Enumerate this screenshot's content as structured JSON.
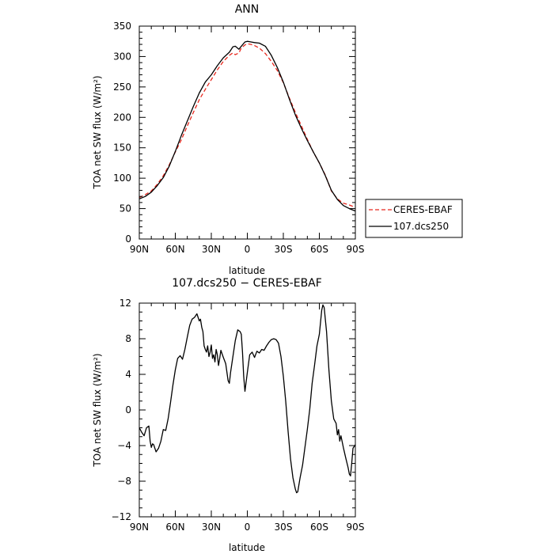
{
  "chart_data": [
    {
      "type": "line",
      "title": "ANN",
      "xlabel": "latitude",
      "ylabel": "TOA net SW flux (W/m²)",
      "ylim": [
        0,
        350
      ],
      "yticks": [
        0,
        50,
        100,
        150,
        200,
        250,
        300,
        350
      ],
      "xlim": [
        90,
        -90
      ],
      "xticks": [
        90,
        60,
        30,
        0,
        -30,
        -60,
        -90
      ],
      "xtick_labels": [
        "90N",
        "60N",
        "30N",
        "0",
        "30S",
        "60S",
        "90S"
      ],
      "legend_position": "outside-right",
      "series": [
        {
          "name": "CERES-EBAF",
          "color": "#e8281e",
          "dash": "dashed",
          "points": [
            [
              90,
              68
            ],
            [
              85,
              73
            ],
            [
              80,
              79
            ],
            [
              75,
              90
            ],
            [
              70,
              104
            ],
            [
              65,
              122
            ],
            [
              60,
              143
            ],
            [
              55,
              163
            ],
            [
              50,
              186
            ],
            [
              45,
              208
            ],
            [
              40,
              229
            ],
            [
              35,
              246
            ],
            [
              30,
              262
            ],
            [
              25,
              278
            ],
            [
              20,
              292
            ],
            [
              15,
              302
            ],
            [
              12,
              306
            ],
            [
              10,
              303
            ],
            [
              7,
              306
            ],
            [
              5,
              314
            ],
            [
              2,
              319
            ],
            [
              0,
              321
            ],
            [
              -3,
              320
            ],
            [
              -6,
              318
            ],
            [
              -10,
              314
            ],
            [
              -15,
              305
            ],
            [
              -20,
              292
            ],
            [
              -25,
              277
            ],
            [
              -30,
              257
            ],
            [
              -35,
              232
            ],
            [
              -40,
              208
            ],
            [
              -45,
              186
            ],
            [
              -50,
              164
            ],
            [
              -55,
              143
            ],
            [
              -60,
              125
            ],
            [
              -65,
              105
            ],
            [
              -70,
              79
            ],
            [
              -75,
              66
            ],
            [
              -80,
              59
            ],
            [
              -85,
              56
            ],
            [
              -90,
              52
            ]
          ]
        },
        {
          "name": "107.dcs250",
          "color": "#000000",
          "dash": "solid",
          "points": [
            [
              90,
              66
            ],
            [
              85,
              70
            ],
            [
              80,
              77
            ],
            [
              75,
              88
            ],
            [
              70,
              101
            ],
            [
              65,
              120
            ],
            [
              60,
              144
            ],
            [
              55,
              170
            ],
            [
              50,
              194
            ],
            [
              45,
              218
            ],
            [
              40,
              240
            ],
            [
              35,
              258
            ],
            [
              30,
              270
            ],
            [
              25,
              285
            ],
            [
              20,
              298
            ],
            [
              15,
              307
            ],
            [
              12,
              316
            ],
            [
              10,
              317
            ],
            [
              7,
              312
            ],
            [
              5,
              317
            ],
            [
              2,
              324
            ],
            [
              0,
              325
            ],
            [
              -3,
              324
            ],
            [
              -6,
              323
            ],
            [
              -10,
              322
            ],
            [
              -15,
              317
            ],
            [
              -20,
              302
            ],
            [
              -25,
              282
            ],
            [
              -30,
              258
            ],
            [
              -35,
              230
            ],
            [
              -40,
              204
            ],
            [
              -45,
              182
            ],
            [
              -50,
              162
            ],
            [
              -55,
              143
            ],
            [
              -60,
              125
            ],
            [
              -65,
              104
            ],
            [
              -70,
              80
            ],
            [
              -75,
              65
            ],
            [
              -80,
              55
            ],
            [
              -85,
              50
            ],
            [
              -90,
              46
            ]
          ]
        }
      ]
    },
    {
      "type": "line",
      "title": "107.dcs250 − CERES-EBAF",
      "xlabel": "latitude",
      "ylabel": "TOA net SW flux (W/m²)",
      "ylim": [
        -12,
        12
      ],
      "yticks": [
        -12,
        -8,
        -4,
        0,
        4,
        8,
        12
      ],
      "xlim": [
        90,
        -90
      ],
      "xticks": [
        90,
        60,
        30,
        0,
        -30,
        -60,
        -90
      ],
      "xtick_labels": [
        "90N",
        "60N",
        "30N",
        "0",
        "30S",
        "60S",
        "90S"
      ],
      "series": [
        {
          "color": "#000000",
          "dash": "solid",
          "points": [
            [
              90,
              -2
            ],
            [
              88,
              -2.5
            ],
            [
              86,
              -2.9
            ],
            [
              84,
              -2
            ],
            [
              82,
              -1.8
            ],
            [
              81,
              -3.5
            ],
            [
              80,
              -4.2
            ],
            [
              79,
              -3.8
            ],
            [
              78,
              -3.9
            ],
            [
              76,
              -4.7
            ],
            [
              74,
              -4.3
            ],
            [
              72,
              -3.5
            ],
            [
              70,
              -2.2
            ],
            [
              68,
              -2.3
            ],
            [
              66,
              -1.0
            ],
            [
              64,
              0.8
            ],
            [
              62,
              2.8
            ],
            [
              60,
              4.5
            ],
            [
              58,
              5.8
            ],
            [
              56,
              6.1
            ],
            [
              54,
              5.7
            ],
            [
              52,
              6.8
            ],
            [
              50,
              8.2
            ],
            [
              48,
              9.5
            ],
            [
              46,
              10.2
            ],
            [
              44,
              10.4
            ],
            [
              42,
              10.8
            ],
            [
              40,
              10.0
            ],
            [
              39,
              10.2
            ],
            [
              38,
              9.3
            ],
            [
              37,
              8.8
            ],
            [
              36,
              7.2
            ],
            [
              35,
              6.8
            ],
            [
              34,
              6.5
            ],
            [
              33,
              7.2
            ],
            [
              32,
              6.0
            ],
            [
              31,
              6.5
            ],
            [
              30,
              7.3
            ],
            [
              29,
              5.8
            ],
            [
              28,
              6.2
            ],
            [
              27,
              5.4
            ],
            [
              26,
              6.8
            ],
            [
              25,
              6.2
            ],
            [
              24,
              5.0
            ],
            [
              23,
              5.8
            ],
            [
              22,
              6.7
            ],
            [
              21,
              6.3
            ],
            [
              20,
              5.9
            ],
            [
              18,
              5.2
            ],
            [
              16,
              3.3
            ],
            [
              15,
              3.0
            ],
            [
              14,
              4.2
            ],
            [
              12,
              6.0
            ],
            [
              10,
              7.8
            ],
            [
              8,
              9.0
            ],
            [
              6,
              8.8
            ],
            [
              5,
              8.5
            ],
            [
              4,
              6.5
            ],
            [
              3,
              3.8
            ],
            [
              2,
              2.1
            ],
            [
              0,
              4.2
            ],
            [
              -2,
              6.2
            ],
            [
              -4,
              6.5
            ],
            [
              -6,
              5.9
            ],
            [
              -8,
              6.6
            ],
            [
              -10,
              6.4
            ],
            [
              -12,
              6.8
            ],
            [
              -14,
              6.7
            ],
            [
              -16,
              7.2
            ],
            [
              -18,
              7.6
            ],
            [
              -20,
              7.9
            ],
            [
              -22,
              8.0
            ],
            [
              -24,
              7.9
            ],
            [
              -26,
              7.5
            ],
            [
              -28,
              6.0
            ],
            [
              -30,
              3.8
            ],
            [
              -32,
              1.0
            ],
            [
              -34,
              -2.5
            ],
            [
              -36,
              -5.5
            ],
            [
              -38,
              -7.6
            ],
            [
              -40,
              -8.9
            ],
            [
              -41,
              -9.3
            ],
            [
              -42,
              -9.2
            ],
            [
              -44,
              -7.6
            ],
            [
              -46,
              -6.2
            ],
            [
              -48,
              -4.2
            ],
            [
              -50,
              -2.2
            ],
            [
              -52,
              0.1
            ],
            [
              -54,
              3.0
            ],
            [
              -56,
              5.0
            ],
            [
              -58,
              7.2
            ],
            [
              -60,
              8.5
            ],
            [
              -62,
              11.2
            ],
            [
              -63,
              11.8
            ],
            [
              -64,
              11.5
            ],
            [
              -66,
              8.8
            ],
            [
              -68,
              4.5
            ],
            [
              -70,
              1.0
            ],
            [
              -72,
              -1.0
            ],
            [
              -74,
              -1.5
            ],
            [
              -75,
              -2.8
            ],
            [
              -76,
              -2.2
            ],
            [
              -77,
              -3.5
            ],
            [
              -78,
              -2.9
            ],
            [
              -80,
              -4.2
            ],
            [
              -82,
              -5.4
            ],
            [
              -84,
              -6.5
            ],
            [
              -85,
              -7.2
            ],
            [
              -86,
              -7.4
            ],
            [
              -87,
              -6.0
            ],
            [
              -88,
              -4.3
            ],
            [
              -90,
              -3.9
            ]
          ]
        }
      ]
    }
  ]
}
